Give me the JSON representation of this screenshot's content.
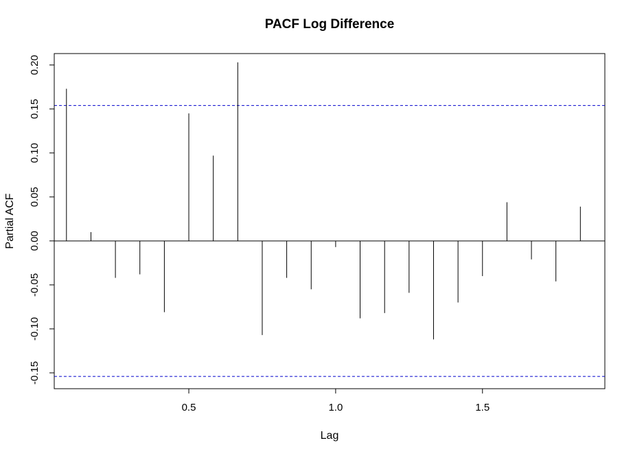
{
  "chart_data": {
    "type": "bar",
    "title": "PACF Log Difference",
    "xlabel": "Lag",
    "ylabel": "Partial ACF",
    "xlim": [
      0.0417,
      1.9167
    ],
    "ylim": [
      -0.168,
      0.213
    ],
    "x_ticks": [
      0.5,
      1.0,
      1.5
    ],
    "x_tick_labels": [
      "0.5",
      "1.0",
      "1.5"
    ],
    "y_ticks": [
      -0.15,
      -0.1,
      -0.05,
      0.0,
      0.05,
      0.1,
      0.15,
      0.2
    ],
    "y_tick_labels": [
      "-0.15",
      "-0.10",
      "-0.05",
      "0.00",
      "0.05",
      "0.10",
      "0.15",
      "0.20"
    ],
    "lags": [
      0.0833,
      0.1667,
      0.25,
      0.3333,
      0.4167,
      0.5,
      0.5833,
      0.6667,
      0.75,
      0.8333,
      0.9167,
      1.0,
      1.0833,
      1.1667,
      1.25,
      1.3333,
      1.4167,
      1.5,
      1.5833,
      1.6667,
      1.75,
      1.8333
    ],
    "values": [
      0.173,
      0.01,
      -0.042,
      -0.038,
      -0.081,
      0.145,
      0.097,
      0.203,
      -0.107,
      -0.042,
      -0.055,
      -0.007,
      -0.088,
      -0.082,
      -0.059,
      -0.112,
      -0.07,
      -0.04,
      0.044,
      -0.021,
      -0.046,
      0.039
    ],
    "confidence_bound": 0.154,
    "confidence_color": "#0000CC",
    "bar_color": "#000000",
    "grid": false,
    "legend": "none"
  }
}
